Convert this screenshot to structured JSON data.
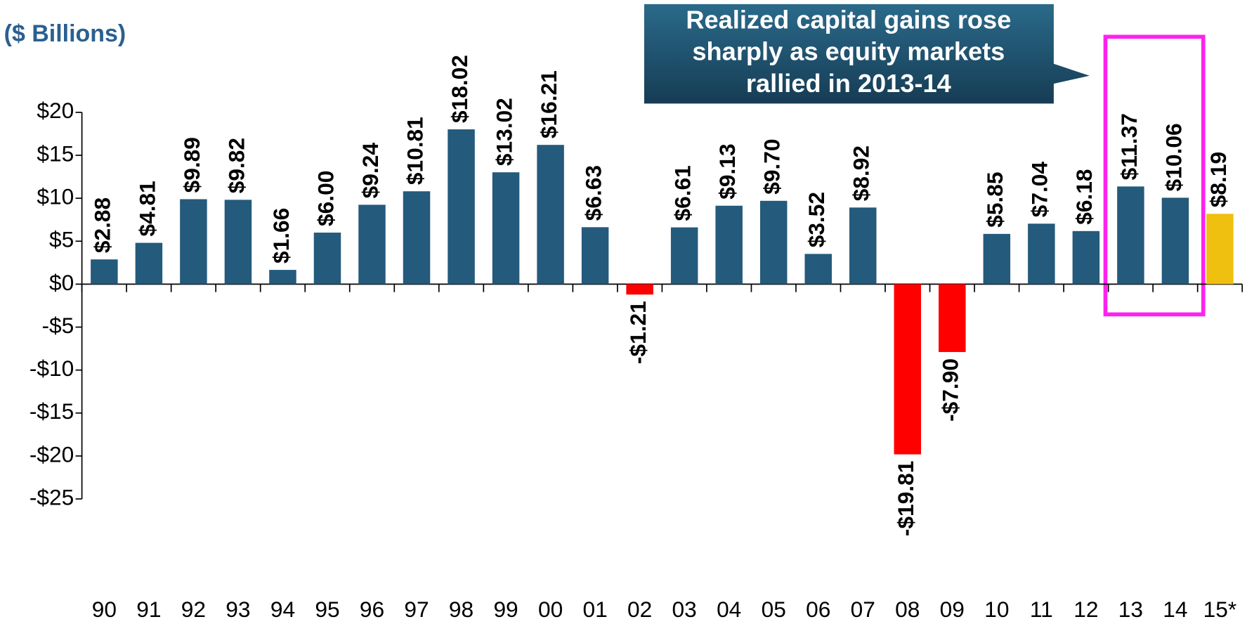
{
  "chart_data": {
    "type": "bar",
    "unit_label": "($ Billions)",
    "annotation": [
      "Realized capital gains rose",
      "sharply as equity markets",
      "rallied in 2013-14"
    ],
    "categories": [
      "90",
      "91",
      "92",
      "93",
      "94",
      "95",
      "96",
      "97",
      "98",
      "99",
      "00",
      "01",
      "02",
      "03",
      "04",
      "05",
      "06",
      "07",
      "08",
      "09",
      "10",
      "11",
      "12",
      "13",
      "14",
      "15*"
    ],
    "values": [
      2.88,
      4.81,
      9.89,
      9.82,
      1.66,
      6.0,
      9.24,
      10.81,
      18.02,
      13.02,
      16.21,
      6.63,
      -1.21,
      6.61,
      9.13,
      9.7,
      3.52,
      8.92,
      -19.81,
      -7.9,
      5.85,
      7.04,
      6.18,
      11.37,
      10.06,
      8.19
    ],
    "value_labels": [
      "$2.88",
      "$4.81",
      "$9.89",
      "$9.82",
      "$1.66",
      "$6.00",
      "$9.24",
      "$10.81",
      "$18.02",
      "$13.02",
      "$16.21",
      "$6.63",
      "-$1.21",
      "$6.61",
      "$9.13",
      "$9.70",
      "$3.52",
      "$8.92",
      "-$19.81",
      "-$7.90",
      "$5.85",
      "$7.04",
      "$6.18",
      "$11.37",
      "$10.06",
      "$8.19"
    ],
    "colors": [
      "#245a7c",
      "#245a7c",
      "#245a7c",
      "#245a7c",
      "#245a7c",
      "#245a7c",
      "#245a7c",
      "#245a7c",
      "#245a7c",
      "#245a7c",
      "#245a7c",
      "#245a7c",
      "#ff0000",
      "#245a7c",
      "#245a7c",
      "#245a7c",
      "#245a7c",
      "#245a7c",
      "#ff0000",
      "#ff0000",
      "#245a7c",
      "#245a7c",
      "#245a7c",
      "#245a7c",
      "#245a7c",
      "#f0c010"
    ],
    "ylim": [
      -25,
      20
    ],
    "yticks": [
      {
        "value": 20,
        "label": "$20"
      },
      {
        "value": 15,
        "label": "$15"
      },
      {
        "value": 10,
        "label": "$10"
      },
      {
        "value": 5,
        "label": "$5"
      },
      {
        "value": 0,
        "label": "$0"
      },
      {
        "value": -5,
        "label": "-$5"
      },
      {
        "value": -10,
        "label": "-$10"
      },
      {
        "value": -15,
        "label": "-$15"
      },
      {
        "value": -20,
        "label": "-$20"
      },
      {
        "value": -25,
        "label": "-$25"
      }
    ]
  }
}
